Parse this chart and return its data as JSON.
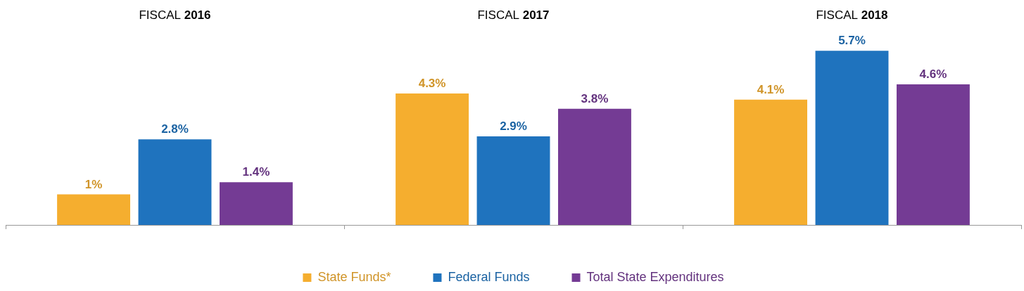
{
  "chart_data": {
    "type": "bar",
    "categories": [
      "FISCAL 2016",
      "FISCAL 2017",
      "FISCAL 2018"
    ],
    "series": [
      {
        "name": "State Funds*",
        "color": "#f5ae2f",
        "values": [
          1,
          4.3,
          4.1
        ],
        "value_labels": [
          "1%",
          "4.3%",
          "4.1%"
        ]
      },
      {
        "name": "Federal Funds",
        "color": "#1f73be",
        "values": [
          2.8,
          2.9,
          5.7
        ],
        "value_labels": [
          "2.8%",
          "2.9%",
          "5.7%"
        ]
      },
      {
        "name": "Total State Expenditures",
        "color": "#743b94",
        "values": [
          1.4,
          3.8,
          4.6
        ],
        "value_labels": [
          "1.4%",
          "3.8%",
          "4.6%"
        ]
      }
    ],
    "legend": "bottom",
    "grid": false
  }
}
